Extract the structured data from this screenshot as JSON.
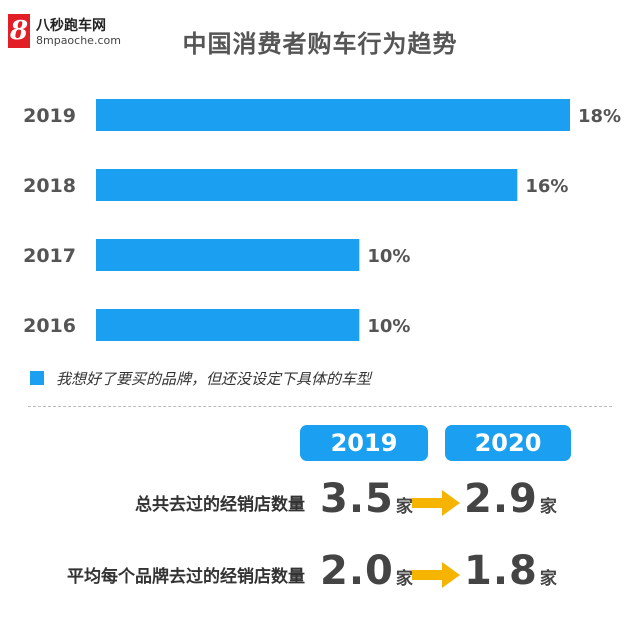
{
  "logo": {
    "icon_text": "8",
    "name": "八秒跑车网",
    "url": "8mpaoche.com"
  },
  "title": "中国消费者购车行为趋势",
  "chart_data": {
    "type": "bar",
    "orientation": "horizontal",
    "title": "中国消费者购车行为趋势",
    "categories": [
      "2019",
      "2018",
      "2017",
      "2016"
    ],
    "values": [
      18,
      16,
      10,
      10
    ],
    "value_labels": [
      "18%",
      "16%",
      "10%",
      "10%"
    ],
    "series": [
      {
        "name": "我想好了要买的品牌，但还没设定下具体的车型",
        "values": [
          18,
          16,
          10,
          10
        ]
      }
    ],
    "xlim": [
      0,
      18
    ],
    "grid": false,
    "legend": "bottom-left",
    "color": "#1b9ff0"
  },
  "comparison": {
    "years": [
      "2019",
      "2020"
    ],
    "rows": [
      {
        "label": "总共去过的经销店数量",
        "from": "3.5",
        "to": "2.9",
        "unit": "家"
      },
      {
        "label": "平均每个品牌去过的经销店数量",
        "from": "2.0",
        "to": "1.8",
        "unit": "家"
      }
    ],
    "badge_color": "#1b9ff0",
    "arrow_color": "#f5b400",
    "arrow_icon": "arrow-right-icon"
  }
}
